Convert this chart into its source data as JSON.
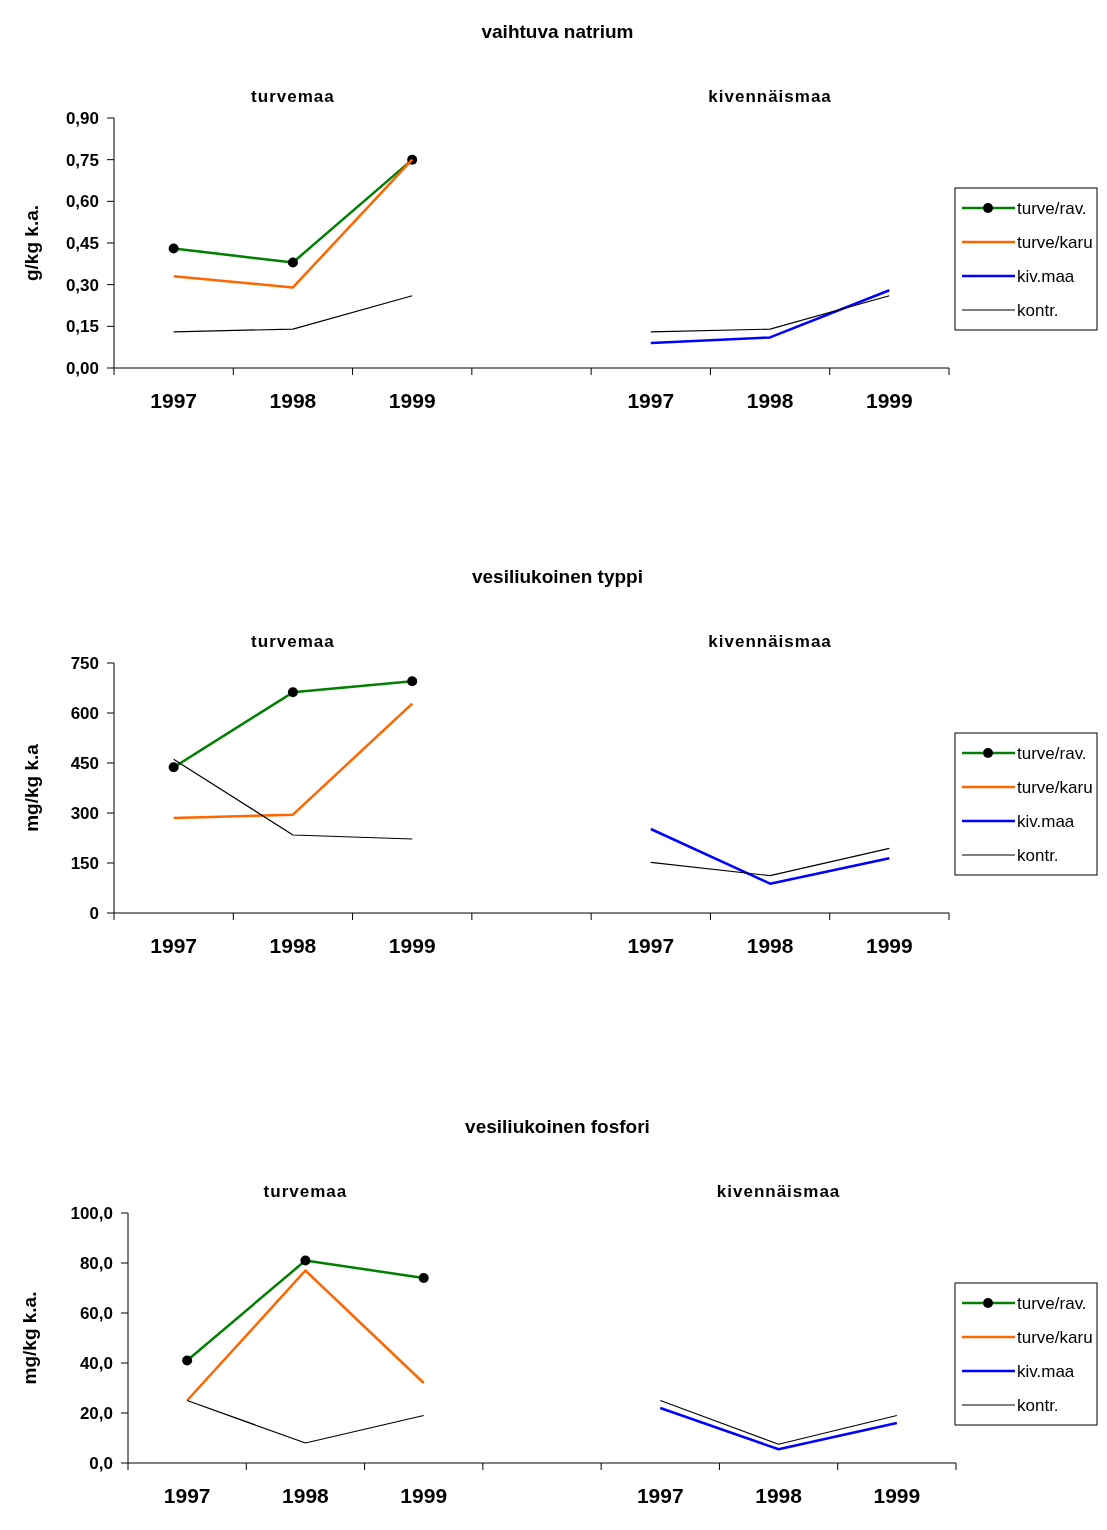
{
  "chart_data": [
    {
      "type": "line",
      "title": "vaihtuva natrium",
      "ylabel": "g/kg k.a.",
      "annotations": [
        "turvemaa",
        "kivennäismaa"
      ],
      "legend": "right",
      "categories": [
        "1997",
        "1998",
        "1999",
        null,
        "1997",
        "1998",
        "1999"
      ],
      "ylim": [
        0,
        0.9
      ],
      "yticks": [
        {
          "value": 0,
          "label": "0,00"
        },
        {
          "value": 0.15,
          "label": "0,15"
        },
        {
          "value": 0.3,
          "label": "0,30"
        },
        {
          "value": 0.45,
          "label": "0,45"
        },
        {
          "value": 0.6,
          "label": "0,60"
        },
        {
          "value": 0.75,
          "label": "0,75"
        },
        {
          "value": 0.9,
          "label": "0,90"
        }
      ],
      "series": [
        {
          "name": "turve/rav.",
          "color": "#008000",
          "marker": "circle",
          "values": [
            0.43,
            0.38,
            0.75,
            null,
            null,
            null,
            null
          ]
        },
        {
          "name": "turve/karu",
          "color": "#ff6600",
          "values": [
            0.33,
            0.29,
            0.75,
            null,
            null,
            null,
            null
          ]
        },
        {
          "name": "kiv.maa",
          "color": "#0000ff",
          "values": [
            null,
            null,
            null,
            null,
            0.09,
            0.11,
            0.28
          ]
        },
        {
          "name": "kontr.",
          "color": "#000000",
          "values": [
            0.13,
            0.14,
            0.26,
            null,
            0.13,
            0.14,
            0.26
          ]
        }
      ]
    },
    {
      "type": "line",
      "title": "vesiliukoinen typpi",
      "ylabel": "mg/kg k.a",
      "annotations": [
        "turvemaa",
        "kivennäismaa"
      ],
      "legend": "right",
      "categories": [
        "1997",
        "1998",
        "1999",
        null,
        "1997",
        "1998",
        "1999"
      ],
      "ylim": [
        0,
        750
      ],
      "yticks": [
        0,
        150,
        300,
        450,
        600,
        750
      ],
      "series": [
        {
          "name": "turve/rav.",
          "color": "#008000",
          "marker": "circle",
          "values": [
            437,
            662,
            695,
            null,
            null,
            null,
            null
          ]
        },
        {
          "name": "turve/karu",
          "color": "#ff6600",
          "values": [
            285,
            295,
            628,
            null,
            null,
            null,
            null
          ]
        },
        {
          "name": "kiv.maa",
          "color": "#0000ff",
          "values": [
            null,
            null,
            null,
            null,
            252,
            88,
            164
          ]
        },
        {
          "name": "kontr.",
          "color": "#000000",
          "values": [
            461,
            234,
            222,
            null,
            152,
            112,
            194
          ]
        }
      ]
    },
    {
      "type": "line",
      "title": "vesiliukoinen  fosfori",
      "ylabel": "mg/kg k.a.",
      "annotations": [
        "turvemaa",
        "kivennäismaa"
      ],
      "legend": "right",
      "categories": [
        "1997",
        "1998",
        "1999",
        null,
        "1997",
        "1998",
        "1999"
      ],
      "ylim": [
        0,
        100
      ],
      "yticks": [
        {
          "value": 0,
          "label": "0,0"
        },
        {
          "value": 20,
          "label": "20,0"
        },
        {
          "value": 40,
          "label": "40,0"
        },
        {
          "value": 60,
          "label": "60,0"
        },
        {
          "value": 80,
          "label": "80,0"
        },
        {
          "value": 100,
          "label": "100,0"
        }
      ],
      "series": [
        {
          "name": "turve/rav.",
          "color": "#008000",
          "marker": "circle",
          "values": [
            41,
            81,
            74,
            null,
            null,
            null,
            null
          ]
        },
        {
          "name": "turve/karu",
          "color": "#ff6600",
          "values": [
            25,
            77,
            32,
            null,
            null,
            null,
            null
          ]
        },
        {
          "name": "kiv.maa",
          "color": "#0000ff",
          "values": [
            null,
            null,
            null,
            null,
            22,
            5.5,
            16
          ]
        },
        {
          "name": "kontr.",
          "color": "#000000",
          "values": [
            25,
            8,
            19,
            null,
            25,
            7.5,
            19
          ]
        }
      ]
    }
  ]
}
